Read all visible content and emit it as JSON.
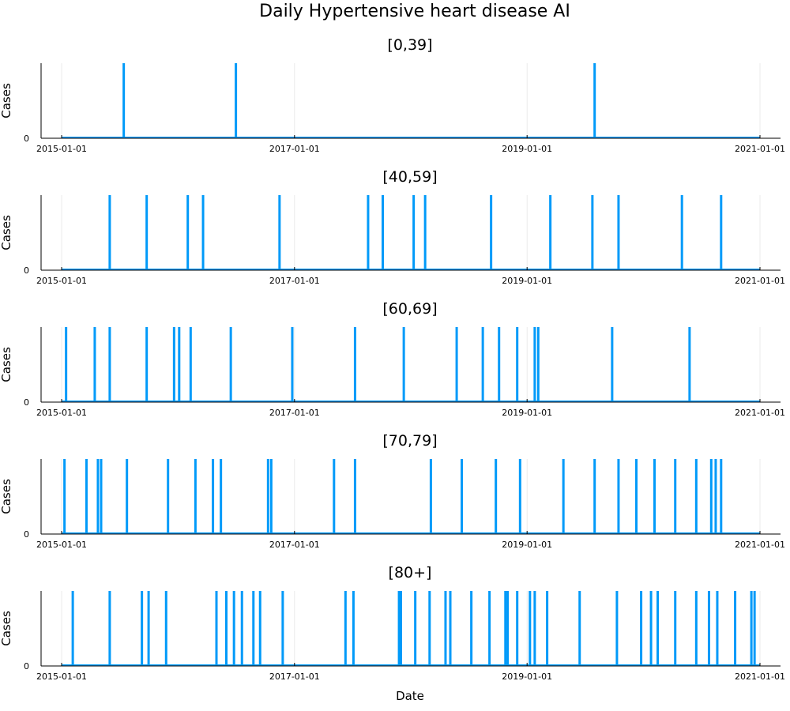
{
  "chart_data": {
    "type": "bar",
    "title": "Daily Hypertensive heart disease AI",
    "x_ticks": [
      "2015-01-01",
      "2017-01-01",
      "2019-01-01",
      "2021-01-01"
    ],
    "xlim": [
      "2015-01-01",
      "2021-01-01"
    ],
    "y_tick": "0",
    "ylabel": "Cases",
    "xlabel": "Date",
    "grid": true,
    "legend": "none",
    "color": "#009af9",
    "panels": [
      {
        "subtitle": "[0,39]",
        "dates": [
          "2015-07-15",
          "2016-07-01",
          "2019-08-01"
        ]
      },
      {
        "subtitle": "[40,59]",
        "dates": [
          "2015-06-01",
          "2015-09-25",
          "2016-02-01",
          "2016-03-20",
          "2016-11-15",
          "2017-08-20",
          "2017-10-05",
          "2018-01-10",
          "2018-02-15",
          "2018-09-10",
          "2019-03-15",
          "2019-07-25",
          "2019-10-15",
          "2020-05-01",
          "2020-09-01"
        ]
      },
      {
        "subtitle": "[60,69]",
        "dates": [
          "2015-01-15",
          "2015-04-15",
          "2015-06-01",
          "2015-09-25",
          "2015-12-20",
          "2016-01-05",
          "2016-02-10",
          "2016-06-15",
          "2016-12-25",
          "2017-07-10",
          "2017-12-10",
          "2018-05-25",
          "2018-08-15",
          "2018-10-05",
          "2018-12-01",
          "2019-01-25",
          "2019-02-05",
          "2019-09-25",
          "2020-05-25"
        ]
      },
      {
        "subtitle": "[70,79]",
        "dates": [
          "2015-01-10",
          "2015-03-20",
          "2015-04-25",
          "2015-05-05",
          "2015-07-25",
          "2015-12-01",
          "2016-02-25",
          "2016-04-20",
          "2016-05-15",
          "2016-10-10",
          "2016-10-20",
          "2017-05-05",
          "2017-07-10",
          "2018-03-05",
          "2018-06-10",
          "2018-09-25",
          "2018-12-10",
          "2019-04-25",
          "2019-08-01",
          "2019-10-15",
          "2019-12-10",
          "2020-02-05",
          "2020-04-10",
          "2020-06-15",
          "2020-08-01",
          "2020-08-15",
          "2020-09-01"
        ]
      },
      {
        "subtitle": "[80+]",
        "dates": [
          "2015-02-05",
          "2015-06-01",
          "2015-09-10",
          "2015-10-01",
          "2015-11-25",
          "2016-05-01",
          "2016-06-01",
          "2016-06-25",
          "2016-07-20",
          "2016-08-25",
          "2016-09-15",
          "2016-11-25",
          "2017-06-10",
          "2017-07-05",
          "2017-11-25",
          "2017-12-01",
          "2018-01-15",
          "2018-03-01",
          "2018-04-20",
          "2018-05-05",
          "2018-07-10",
          "2018-09-05",
          "2018-10-25",
          "2018-11-01",
          "2018-12-01",
          "2019-01-10",
          "2019-01-25",
          "2019-03-05",
          "2019-06-15",
          "2019-10-10",
          "2019-12-25",
          "2020-01-25",
          "2020-02-15",
          "2020-04-10",
          "2020-06-15",
          "2020-07-25",
          "2020-08-20",
          "2020-10-15",
          "2020-12-05",
          "2020-12-15"
        ]
      }
    ]
  }
}
